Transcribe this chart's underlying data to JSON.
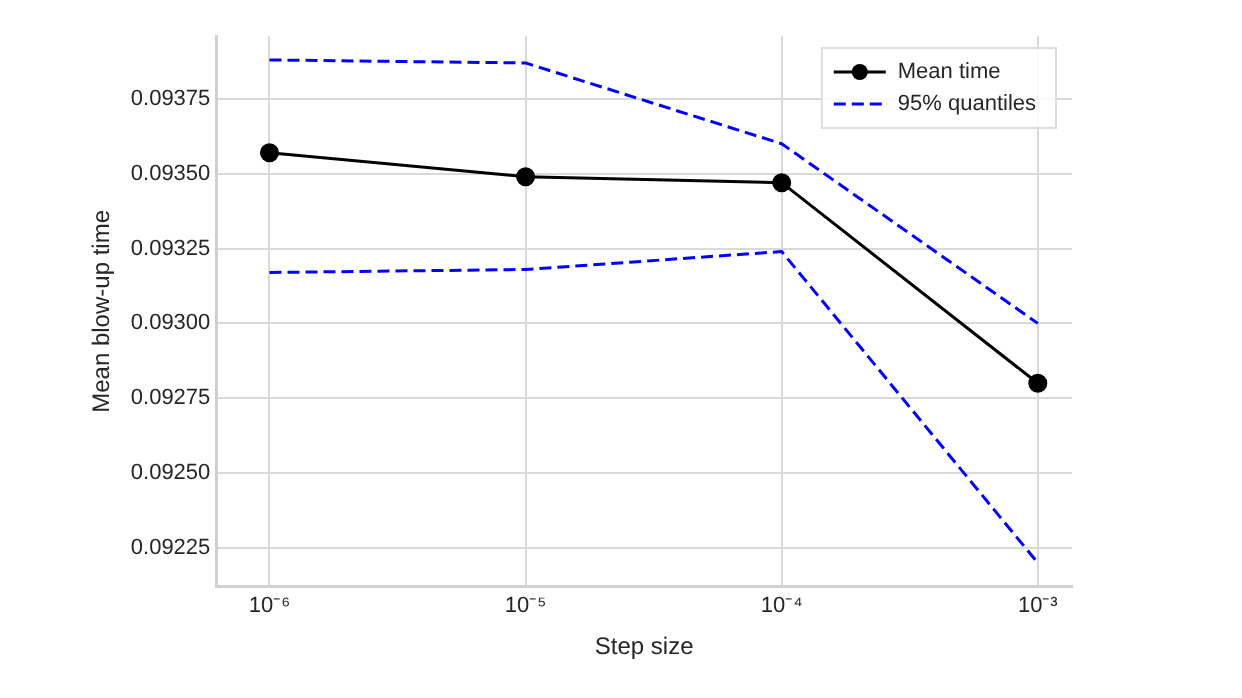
{
  "chart_data": {
    "type": "line",
    "xlabel": "Step size",
    "ylabel": "Mean blow-up time",
    "x": [
      1e-06,
      1e-05,
      0.0001,
      0.001
    ],
    "series": [
      {
        "name": "Mean time",
        "color": "#000000",
        "values": [
          0.09357,
          0.09349,
          0.09347,
          0.0928
        ],
        "marker": "circle",
        "line_style": "solid"
      },
      {
        "name": "95% quantiles",
        "color": "#0000ff",
        "values": [
          0.09388,
          0.09387,
          0.0936,
          0.093
        ],
        "marker": "none",
        "line_style": "dashed"
      },
      {
        "color": "#0000ff",
        "values": [
          0.09317,
          0.09318,
          0.09324,
          0.0922
        ],
        "marker": "none",
        "line_style": "dashed"
      }
    ],
    "log": "x",
    "xlim": [
      6.2e-07,
      0.00136
    ],
    "xticks": [
      {
        "value": 1e-06,
        "label": "10⁻⁶"
      },
      {
        "value": 1e-05,
        "label": "10⁻⁵"
      },
      {
        "value": 0.0001,
        "label": "10⁻⁴"
      },
      {
        "value": 0.001,
        "label": "10⁻³"
      }
    ],
    "ylim": [
      0.09212,
      0.09396
    ],
    "yticks": [
      0.09225,
      {
        "value": 0.0925,
        "label": "0.09250"
      },
      0.09275,
      {
        "value": 0.093,
        "label": "0.09300"
      },
      0.09325,
      {
        "value": 0.0935,
        "label": "0.09350"
      },
      0.09375
    ],
    "grid": true,
    "legend": "top right"
  }
}
